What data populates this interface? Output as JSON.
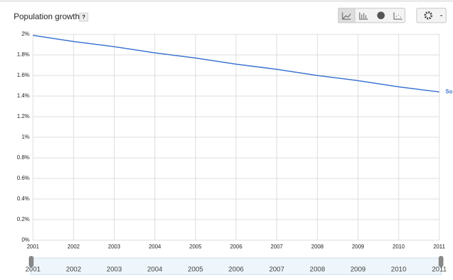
{
  "chart_data": {
    "type": "line",
    "title": "Population growth",
    "help_label": "?",
    "x": [
      2001,
      2002,
      2003,
      2004,
      2005,
      2006,
      2007,
      2008,
      2009,
      2010,
      2011
    ],
    "series": [
      {
        "name": "So",
        "color": "#3b73d0",
        "values": [
          1.99,
          1.93,
          1.88,
          1.82,
          1.77,
          1.71,
          1.66,
          1.6,
          1.55,
          1.49,
          1.44
        ]
      }
    ],
    "xlim": [
      2001,
      2011
    ],
    "xticks": [
      2001,
      2002,
      2003,
      2004,
      2005,
      2006,
      2007,
      2008,
      2009,
      2010,
      2011
    ],
    "ylim": [
      0,
      2
    ],
    "yticks": [
      {
        "value": 0,
        "label": "0%"
      },
      {
        "value": 0.2,
        "label": "0.2%"
      },
      {
        "value": 0.4,
        "label": "0.4%"
      },
      {
        "value": 0.6,
        "label": "0.6%"
      },
      {
        "value": 0.8,
        "label": "0.8%"
      },
      {
        "value": 1,
        "label": "1%"
      },
      {
        "value": 1.2,
        "label": "1.2%"
      },
      {
        "value": 1.4,
        "label": "1.4%"
      },
      {
        "value": 1.6,
        "label": "1.6%"
      },
      {
        "value": 1.8,
        "label": "1.8%"
      },
      {
        "value": 2,
        "label": "2%"
      }
    ],
    "grid": true
  }
}
